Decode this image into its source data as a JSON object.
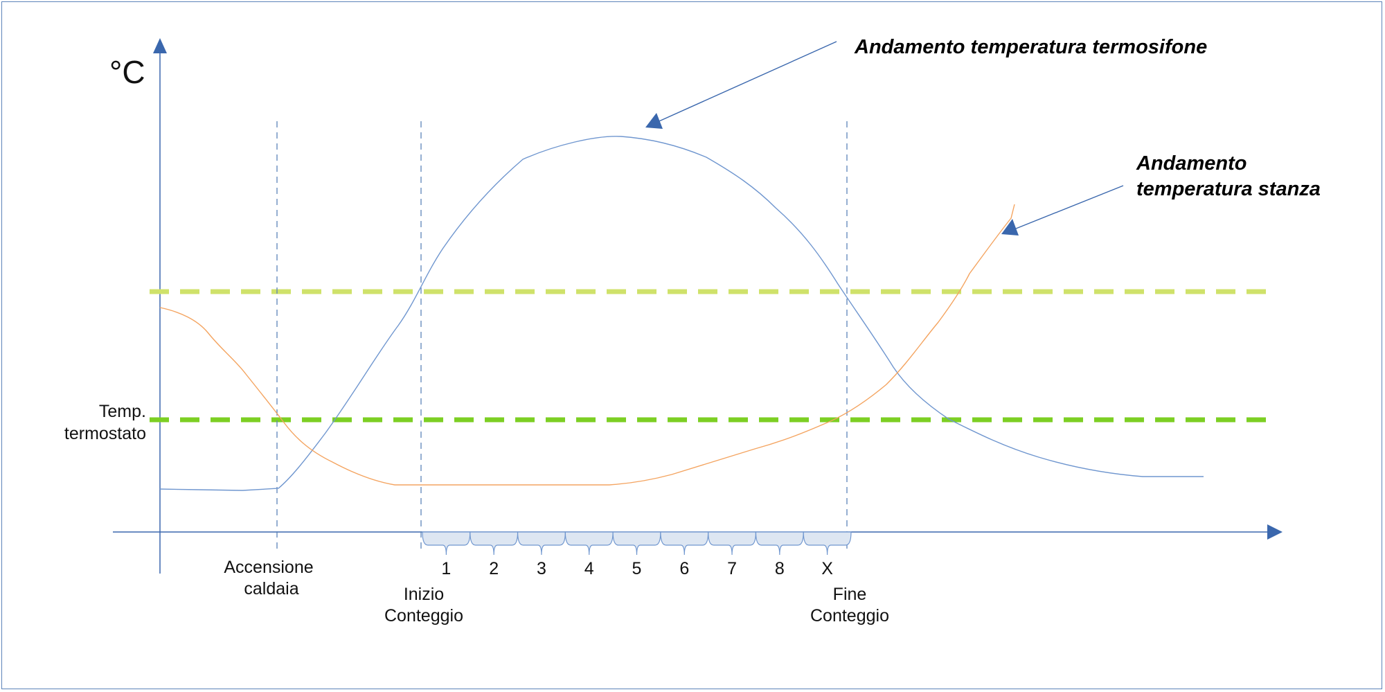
{
  "axis": {
    "y_unit": "°C"
  },
  "thresholds": {
    "upper_color": "#cfe26a",
    "thermostat_color": "#7ccf23",
    "thermostat_label_line1": "Temp.",
    "thermostat_label_line2": "termostato"
  },
  "events": {
    "boiler_on_line1": "Accensione",
    "boiler_on_line2": "caldaia",
    "count_start_line1": "Inizio",
    "count_start_line2": "Conteggio",
    "count_end_line1": "Fine",
    "count_end_line2": "Conteggio"
  },
  "intervals": [
    "1",
    "2",
    "3",
    "4",
    "5",
    "6",
    "7",
    "8",
    "X"
  ],
  "annotations": {
    "radiator_title": "Andamento temperatura termosifone",
    "room_title_line1": "Andamento",
    "room_title_line2": "temperatura stanza"
  },
  "colors": {
    "radiator_curve": "#6f96cf",
    "room_curve": "#f4a460",
    "axis": "#3a67ad",
    "bracket_fill": "#dde6f2"
  }
}
